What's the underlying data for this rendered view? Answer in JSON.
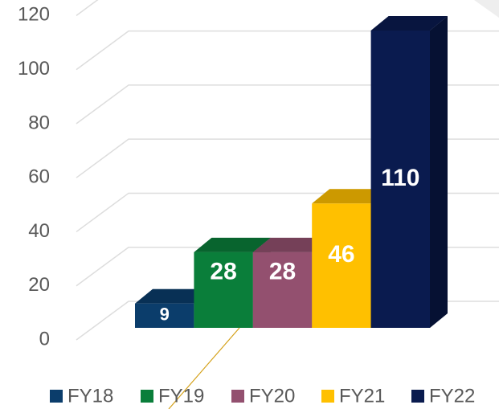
{
  "chart_data": {
    "type": "bar3d",
    "categories": [
      "FY18",
      "FY19",
      "FY20",
      "FY21",
      "FY22"
    ],
    "values": [
      9,
      28,
      28,
      46,
      110
    ],
    "colors": [
      "#0b3d6b",
      "#0a7e3a",
      "#93506f",
      "#ffc000",
      "#0a1b4f"
    ],
    "ylim": [
      0,
      120
    ],
    "yticks": [
      0,
      20,
      40,
      60,
      80,
      100,
      120
    ],
    "grid": true,
    "legend": "bottom"
  }
}
